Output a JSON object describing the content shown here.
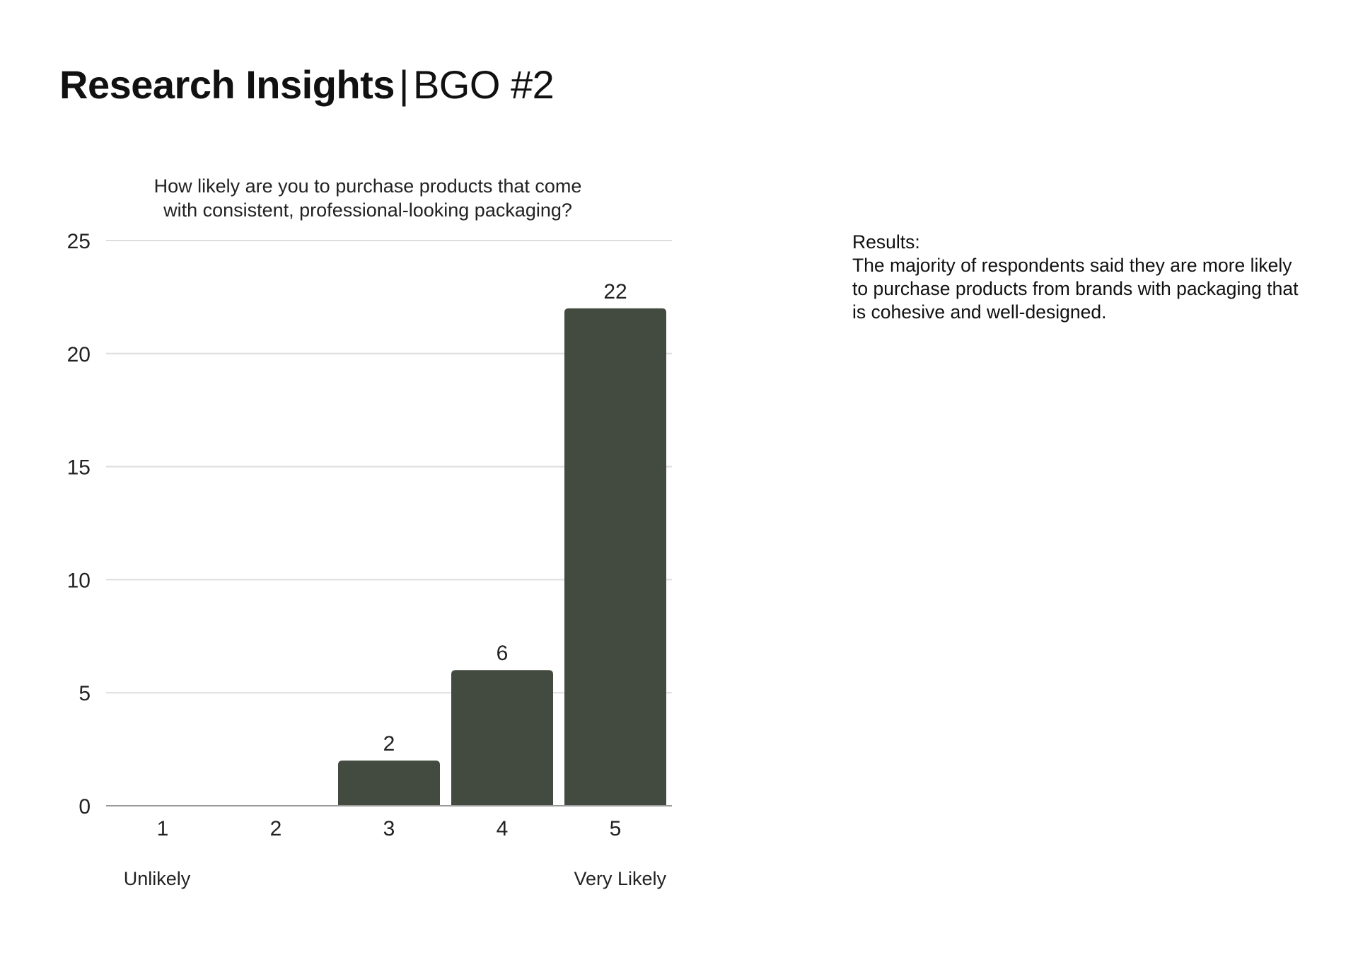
{
  "page": {
    "title_main": "Research Insights",
    "title_separator": "|",
    "title_sub": "BGO #2"
  },
  "results": {
    "heading": "Results:",
    "body": "The majority of respondents said they are more likely to purchase products from brands with packaging that is cohesive and well-designed."
  },
  "chart_data": {
    "type": "bar",
    "title_lines": [
      "How likely are you to purchase products that come",
      "with consistent, professional-looking packaging?"
    ],
    "categories": [
      "1",
      "2",
      "3",
      "4",
      "5"
    ],
    "values": [
      0,
      0,
      2,
      6,
      22
    ],
    "data_labels": [
      "",
      "",
      "2",
      "6",
      "22"
    ],
    "scale_labels": {
      "low": "Unlikely",
      "high": "Very Likely"
    },
    "xlabel": "",
    "ylabel": "",
    "ylim": [
      0,
      25
    ],
    "yticks": [
      0,
      5,
      10,
      15,
      20,
      25
    ],
    "grid": true,
    "legend": "none",
    "colors": {
      "bar": "#434a3f",
      "grid": "#dddddd",
      "axis": "#9a9a9a",
      "text": "#222222"
    }
  }
}
